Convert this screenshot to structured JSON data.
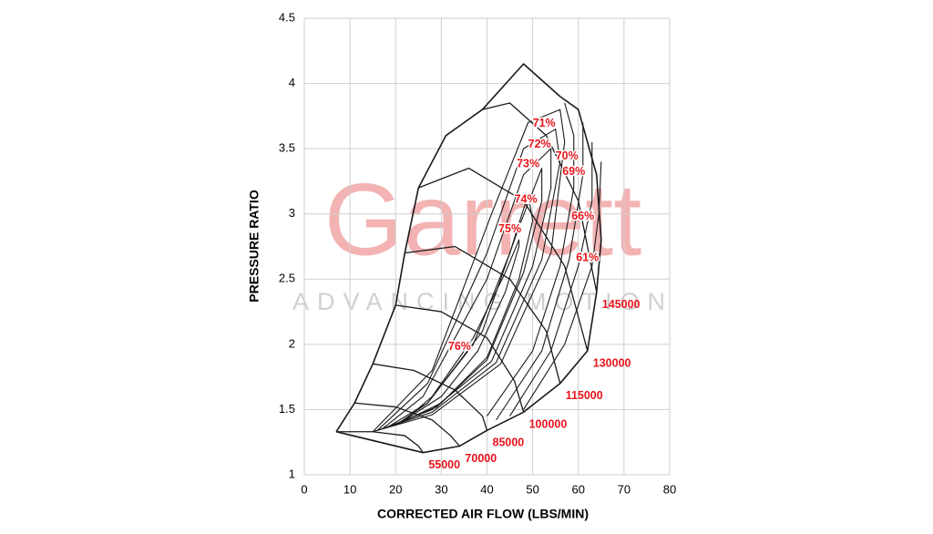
{
  "chart_data": {
    "type": "line",
    "watermark": "Garrett",
    "watermark_sub": "ADVANCING MOTION",
    "x_label": "CORRECTED AIR FLOW (LBS/MIN)",
    "y_label": "PRESSURE RATIO",
    "xlim": [
      0,
      80
    ],
    "xticks": [
      0,
      10,
      20,
      30,
      40,
      50,
      60,
      70,
      80
    ],
    "ylim": [
      1,
      4.5
    ],
    "yticks": [
      1,
      1.5,
      2,
      2.5,
      3,
      3.5,
      4,
      4.5
    ],
    "grid": true,
    "color": "#1a1a1a",
    "label_color": "#e8141b",
    "watermark_color": "#f3b3b3",
    "outline": {
      "x": [
        7,
        11,
        15,
        20,
        22,
        25,
        31,
        39,
        48,
        56,
        60,
        64,
        65,
        64,
        62,
        56,
        48,
        40,
        34,
        26,
        7
      ],
      "y": [
        1.33,
        1.55,
        1.85,
        2.3,
        2.7,
        3.2,
        3.6,
        3.8,
        4.15,
        3.9,
        3.8,
        3.3,
        2.8,
        2.4,
        1.95,
        1.7,
        1.48,
        1.34,
        1.22,
        1.17,
        1.33
      ]
    },
    "series": [
      {
        "name": "55000",
        "x": [
          7,
          15,
          22,
          25,
          26
        ],
        "y": [
          1.33,
          1.33,
          1.3,
          1.22,
          1.17
        ]
      },
      {
        "name": "70000",
        "x": [
          11,
          20,
          28,
          32,
          34
        ],
        "y": [
          1.55,
          1.52,
          1.42,
          1.3,
          1.22
        ]
      },
      {
        "name": "85000",
        "x": [
          15,
          24,
          33,
          39,
          40
        ],
        "y": [
          1.85,
          1.8,
          1.65,
          1.45,
          1.34
        ]
      },
      {
        "name": "100000",
        "x": [
          20,
          30,
          40,
          46,
          48
        ],
        "y": [
          2.3,
          2.25,
          2.05,
          1.72,
          1.48
        ]
      },
      {
        "name": "115000",
        "x": [
          22,
          33,
          45,
          53,
          56
        ],
        "y": [
          2.7,
          2.75,
          2.5,
          2.1,
          1.7
        ]
      },
      {
        "name": "130000",
        "x": [
          25,
          36,
          48,
          57,
          62
        ],
        "y": [
          3.2,
          3.35,
          3.1,
          2.6,
          1.95
        ]
      },
      {
        "name": "145000",
        "x": [
          39,
          45,
          53,
          60,
          64
        ],
        "y": [
          3.8,
          3.85,
          3.6,
          3.1,
          2.4
        ]
      }
    ],
    "contours": [
      {
        "x": [
          22,
          30,
          38,
          44,
          47,
          47,
          44,
          37,
          28,
          22
        ],
        "y": [
          1.42,
          1.6,
          1.95,
          2.4,
          2.75,
          2.8,
          2.55,
          2.05,
          1.6,
          1.42
        ]
      },
      {
        "x": [
          20,
          30,
          40,
          47,
          50,
          49,
          45,
          37,
          27,
          20
        ],
        "y": [
          1.38,
          1.55,
          1.9,
          2.5,
          2.95,
          3.15,
          2.7,
          2.0,
          1.55,
          1.38
        ]
      },
      {
        "x": [
          18,
          29,
          40,
          48,
          52,
          52,
          47,
          39,
          27,
          18
        ],
        "y": [
          1.36,
          1.52,
          1.88,
          2.55,
          3.1,
          3.35,
          2.9,
          2.1,
          1.55,
          1.36
        ]
      },
      {
        "x": [
          17,
          28,
          41,
          50,
          54,
          54,
          48,
          40,
          26,
          17
        ],
        "y": [
          1.35,
          1.5,
          1.87,
          2.6,
          3.2,
          3.5,
          3.3,
          2.5,
          1.6,
          1.35
        ]
      },
      {
        "x": [
          16,
          28,
          42,
          52,
          56,
          55,
          48,
          40,
          27,
          16
        ],
        "y": [
          1.34,
          1.48,
          1.86,
          2.65,
          3.4,
          3.65,
          3.5,
          2.7,
          1.7,
          1.34
        ]
      },
      {
        "x": [
          15,
          28,
          43,
          54,
          57,
          56,
          49,
          41,
          28,
          15
        ],
        "y": [
          1.33,
          1.46,
          1.85,
          2.7,
          3.55,
          3.8,
          3.7,
          3,
          1.8,
          1.33
        ]
      },
      {
        "x": [
          40,
          50,
          56,
          59,
          59,
          57
        ],
        "y": [
          1.45,
          1.95,
          2.6,
          3.2,
          3.6,
          3.85
        ]
      },
      {
        "x": [
          42,
          52,
          58,
          61,
          61
        ],
        "y": [
          1.42,
          1.95,
          2.65,
          3.3,
          3.7
        ]
      },
      {
        "x": [
          45,
          54,
          60,
          63,
          63
        ],
        "y": [
          1.45,
          1.95,
          2.6,
          3.1,
          3.55
        ]
      },
      {
        "x": [
          48,
          57,
          63,
          64.5,
          65
        ],
        "y": [
          1.5,
          2.0,
          2.6,
          3.0,
          3.4
        ]
      }
    ],
    "annotations": [
      {
        "text": "76%",
        "x": 34,
        "y": 1.98
      },
      {
        "text": "75%",
        "x": 45,
        "y": 2.88
      },
      {
        "text": "74%",
        "x": 48.5,
        "y": 3.11
      },
      {
        "text": "73%",
        "x": 49,
        "y": 3.38
      },
      {
        "text": "72%",
        "x": 51.5,
        "y": 3.53
      },
      {
        "text": "71%",
        "x": 52.5,
        "y": 3.69
      },
      {
        "text": "70%",
        "x": 57.5,
        "y": 3.44
      },
      {
        "text": "69%",
        "x": 59,
        "y": 3.32
      },
      {
        "text": "66%",
        "x": 61,
        "y": 2.98
      },
      {
        "text": "61%",
        "x": 62,
        "y": 2.66
      }
    ]
  }
}
